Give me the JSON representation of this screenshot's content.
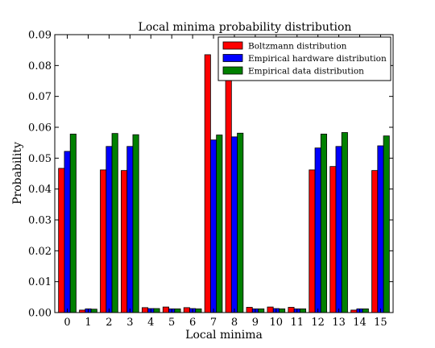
{
  "chart_data": {
    "type": "bar",
    "title": "Local minima probability distribution",
    "xlabel": "Local minima",
    "ylabel": "Probability",
    "ylim": [
      0,
      0.09
    ],
    "yticks": [
      "0.00",
      "0.01",
      "0.02",
      "0.03",
      "0.04",
      "0.05",
      "0.06",
      "0.07",
      "0.08",
      "0.09"
    ],
    "categories": [
      "0",
      "1",
      "2",
      "3",
      "4",
      "5",
      "6",
      "7",
      "8",
      "9",
      "10",
      "11",
      "12",
      "13",
      "14",
      "15"
    ],
    "grid": false,
    "legend_position": "top-right",
    "series": [
      {
        "name": "Boltzmann distribution",
        "color": "#ff0000",
        "values": [
          0.0467,
          0.0008,
          0.0462,
          0.046,
          0.0016,
          0.0018,
          0.0016,
          0.0835,
          0.0835,
          0.0017,
          0.0018,
          0.0017,
          0.0462,
          0.0473,
          0.0008,
          0.046
        ]
      },
      {
        "name": "Empirical hardware distribution",
        "color": "#0000ff",
        "values": [
          0.0522,
          0.0012,
          0.0538,
          0.0538,
          0.0013,
          0.0012,
          0.0013,
          0.0559,
          0.0569,
          0.0012,
          0.0013,
          0.0012,
          0.0533,
          0.0538,
          0.0012,
          0.054
        ]
      },
      {
        "name": "Empirical data distribution",
        "color": "#008000",
        "values": [
          0.0578,
          0.0011,
          0.058,
          0.0576,
          0.0013,
          0.0012,
          0.0012,
          0.0575,
          0.0581,
          0.0012,
          0.0012,
          0.0012,
          0.0578,
          0.0583,
          0.0012,
          0.0572
        ]
      }
    ]
  }
}
